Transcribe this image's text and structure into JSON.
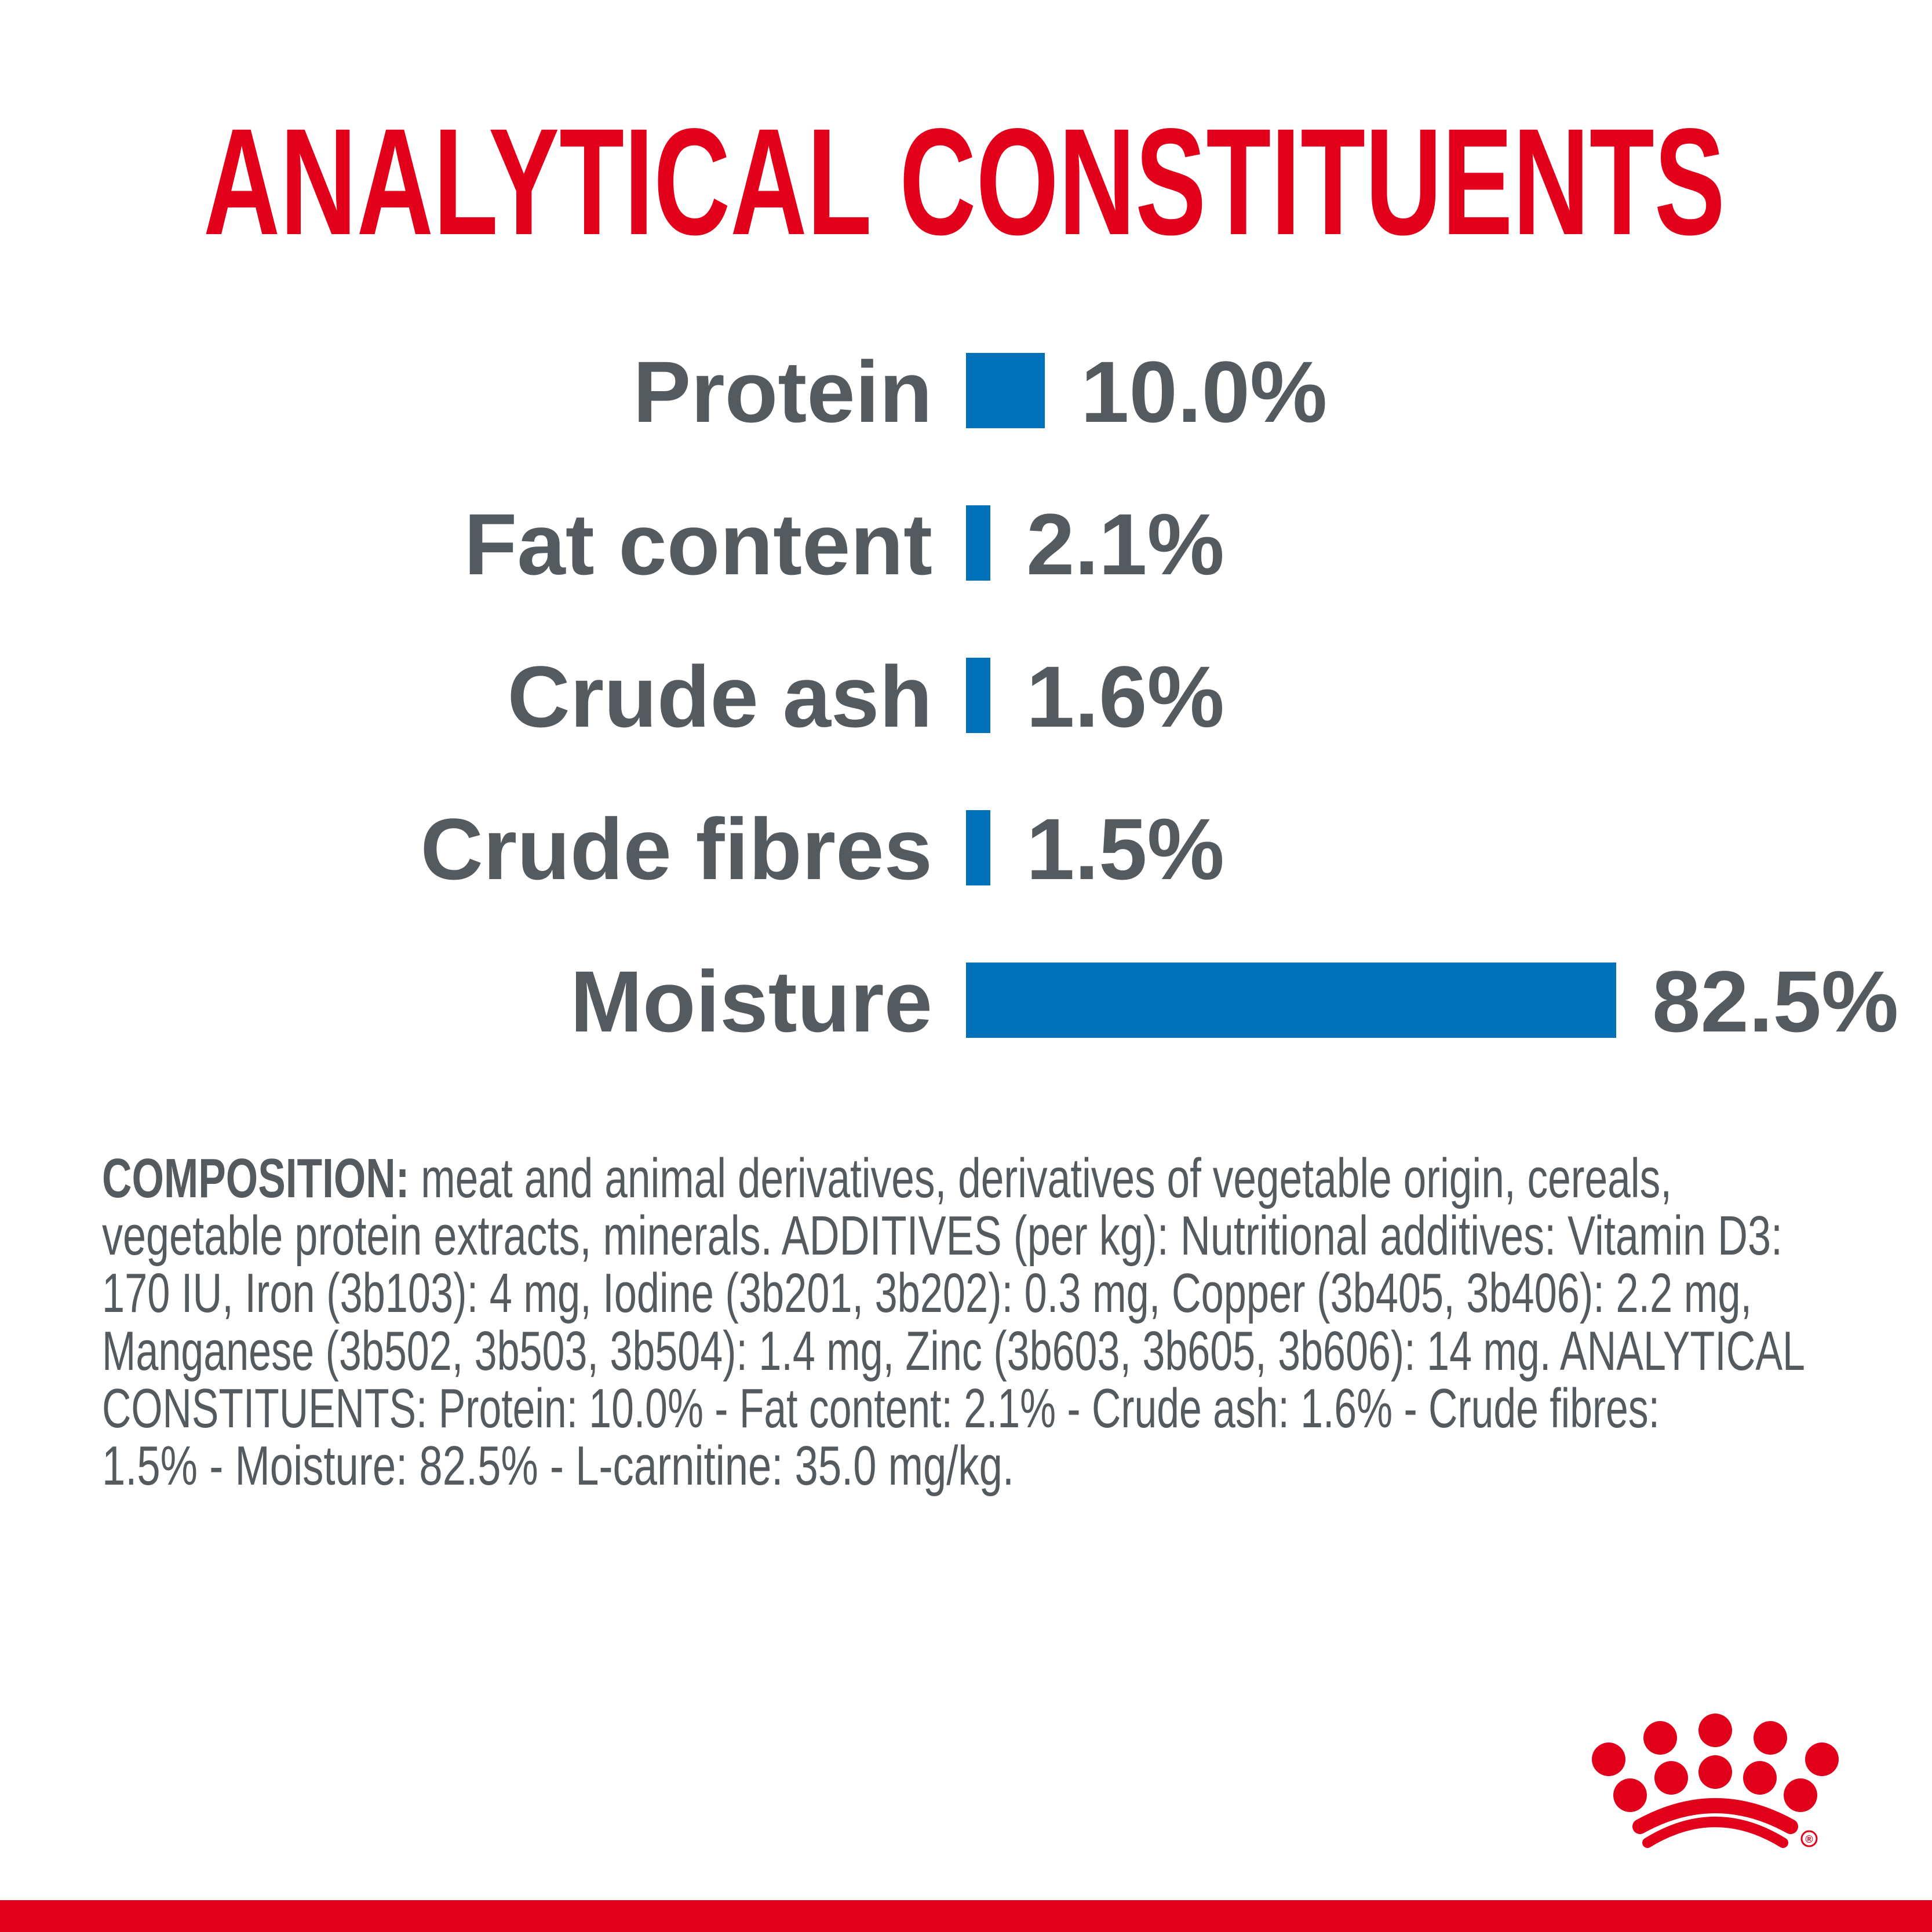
{
  "chart_data": {
    "type": "bar",
    "orientation": "horizontal",
    "title": "ANALYTICAL CONSTITUENTS",
    "categories": [
      "Protein",
      "Fat content",
      "Crude ash",
      "Crude fibres",
      "Moisture"
    ],
    "values": [
      10.0,
      2.1,
      1.6,
      1.5,
      82.5
    ],
    "value_labels": [
      "10.0%",
      "2.1%",
      "1.6%",
      "1.5%",
      "82.5%"
    ],
    "unit": "%",
    "xlim": [
      0,
      82.5
    ],
    "grid": false,
    "bar_color": "#0072bb"
  },
  "composition": {
    "heading": "COMPOSITION:",
    "lines": [
      " meat and animal derivatives, derivatives of vegetable origin, cereals,",
      "vegetable protein extracts, minerals. ADDITIVES (per kg): Nutritional additives: Vitamin D3:",
      "170 IU, Iron (3b103): 4 mg, Iodine (3b201, 3b202): 0.3 mg, Copper (3b405, 3b406): 2.2 mg,",
      "Manganese (3b502, 3b503, 3b504): 1.4 mg, Zinc (3b603, 3b605, 3b606): 14 mg. ANALYTICAL",
      "CONSTITUENTS: Protein: 10.0% - Fat content: 2.1% - Crude ash: 1.6% - Crude fibres:",
      "1.5% - Moisture: 82.5% - L-carnitine: 35.0 mg/kg."
    ]
  },
  "brand": {
    "logo": "royal-canin-crown-logo",
    "registered_mark": "®"
  },
  "colors": {
    "accent": "#e2001a",
    "text": "#555a5f",
    "bar": "#0072bb"
  }
}
